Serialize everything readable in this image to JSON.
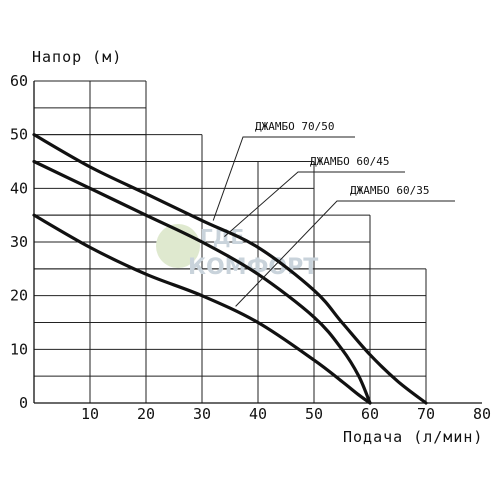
{
  "chart_data": {
    "type": "line",
    "title": "",
    "ylabel": "Напор (м)",
    "xlabel": "Подача (л/мин)",
    "xlim": [
      0,
      80
    ],
    "ylim": [
      0,
      60
    ],
    "x_ticks": [
      "10",
      "20",
      "30",
      "40",
      "50",
      "60",
      "70",
      "80"
    ],
    "y_ticks": [
      "0",
      "10",
      "20",
      "30",
      "40",
      "50",
      "60"
    ],
    "grid": "stepped",
    "grid_steps": [
      {
        "y_from": 50,
        "y_to": 60,
        "x_max": 20
      },
      {
        "y_from": 45,
        "y_to": 50,
        "x_max": 30
      },
      {
        "y_from": 35,
        "y_to": 45,
        "x_max": 50
      },
      {
        "y_from": 25,
        "y_to": 35,
        "x_max": 60
      },
      {
        "y_from": 0,
        "y_to": 25,
        "x_max": 70
      }
    ],
    "series": [
      {
        "name": "ДЖАМБО 70/50",
        "x": [
          0,
          10,
          20,
          30,
          40,
          50,
          55,
          60,
          65,
          70
        ],
        "y": [
          50,
          44,
          39,
          34,
          29,
          21,
          15,
          9,
          4,
          0
        ]
      },
      {
        "name": "ДЖАМБО 60/45",
        "x": [
          0,
          10,
          20,
          30,
          40,
          50,
          55,
          58,
          60
        ],
        "y": [
          45,
          40,
          35,
          30,
          24,
          16,
          10,
          5,
          0
        ]
      },
      {
        "name": "ДЖАМБО 60/35",
        "x": [
          0,
          10,
          20,
          30,
          40,
          50,
          55,
          58,
          60
        ],
        "y": [
          35,
          29,
          24,
          20,
          15,
          8,
          4,
          1.5,
          0
        ]
      }
    ],
    "legend_position": "right-callouts"
  },
  "watermark": {
    "line1": "ГДЕ",
    "line2": "КОМФОРТ"
  }
}
